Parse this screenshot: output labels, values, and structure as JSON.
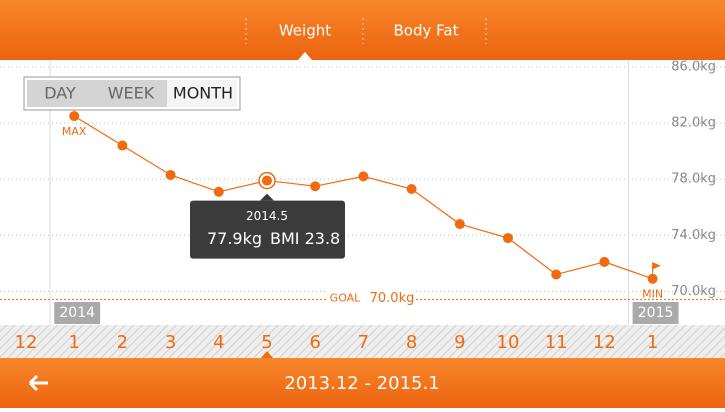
{
  "tabs": [
    "Weight",
    "Body Fat"
  ],
  "range_buttons": [
    "DAY",
    "WEEK",
    "MONTH"
  ],
  "chart_data": {
    "type": "line",
    "categories": [
      "12",
      "1",
      "2",
      "3",
      "4",
      "5",
      "6",
      "7",
      "8",
      "9",
      "10",
      "11",
      "12",
      "1"
    ],
    "year_labels": [
      "2014",
      "2015"
    ],
    "series": [
      {
        "name": "Weight",
        "color": "#f06a10",
        "values": [
          null,
          82.5,
          80.4,
          78.3,
          77.1,
          77.9,
          77.5,
          78.2,
          77.3,
          74.8,
          73.8,
          71.2,
          72.1,
          70.9
        ]
      }
    ],
    "ylim": [
      67.6,
      86.5
    ],
    "yticks": [
      {
        "value": 70,
        "label": "70.0kg"
      },
      {
        "value": 74,
        "label": "74.0kg"
      },
      {
        "value": 78,
        "label": "78.0kg"
      },
      {
        "value": 82,
        "label": "82.0kg"
      },
      {
        "value": 86,
        "label": "86.0kg"
      }
    ],
    "grid": true,
    "max_label": "MAX",
    "min_label": "MIN",
    "goal": {
      "label": "GOAL",
      "value": 70,
      "value_label": "70.0kg"
    },
    "tooltip": {
      "date": "2014.5",
      "weight": "77.9kg",
      "bmi": "BMI 23.8"
    }
  },
  "footer": {
    "range": "2013.12 - 2015.1"
  }
}
